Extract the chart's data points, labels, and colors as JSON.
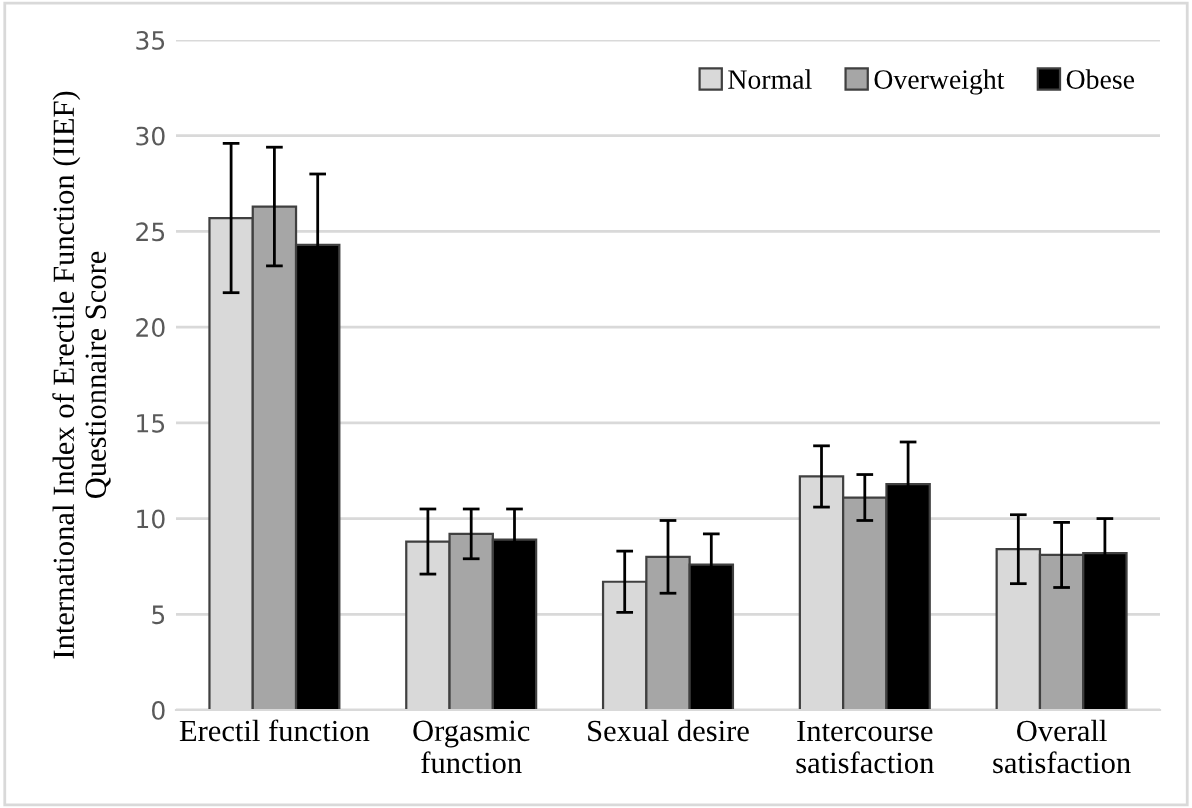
{
  "chart_data": {
    "type": "bar",
    "ylabel": "International Index of Erectile Function (IIEF)\nQuestionnaire Score",
    "categories": [
      "Erectil function",
      "Orgasmic\nfunction",
      "Sexual desire",
      "Intercourse\nsatisfaction",
      "Overall\nsatisfaction"
    ],
    "series": [
      {
        "name": "Normal",
        "color": "#d9d9d9",
        "values": [
          25.7,
          8.8,
          6.7,
          12.2,
          8.4
        ],
        "errors": [
          3.9,
          1.7,
          1.6,
          1.6,
          1.8
        ]
      },
      {
        "name": "Overweight",
        "color": "#a6a6a6",
        "values": [
          26.3,
          9.2,
          8.0,
          11.1,
          8.1
        ],
        "errors": [
          3.1,
          1.3,
          1.9,
          1.2,
          1.7
        ]
      },
      {
        "name": "Obese",
        "color": "#000000",
        "values": [
          24.3,
          8.9,
          7.6,
          11.8,
          8.2
        ],
        "errors": [
          3.7,
          1.6,
          1.6,
          2.2,
          1.8
        ]
      }
    ],
    "ylim": [
      0,
      35
    ],
    "yticks": [
      0,
      5,
      10,
      15,
      20,
      25,
      30,
      35
    ],
    "grid": "y",
    "legend": "top right"
  }
}
